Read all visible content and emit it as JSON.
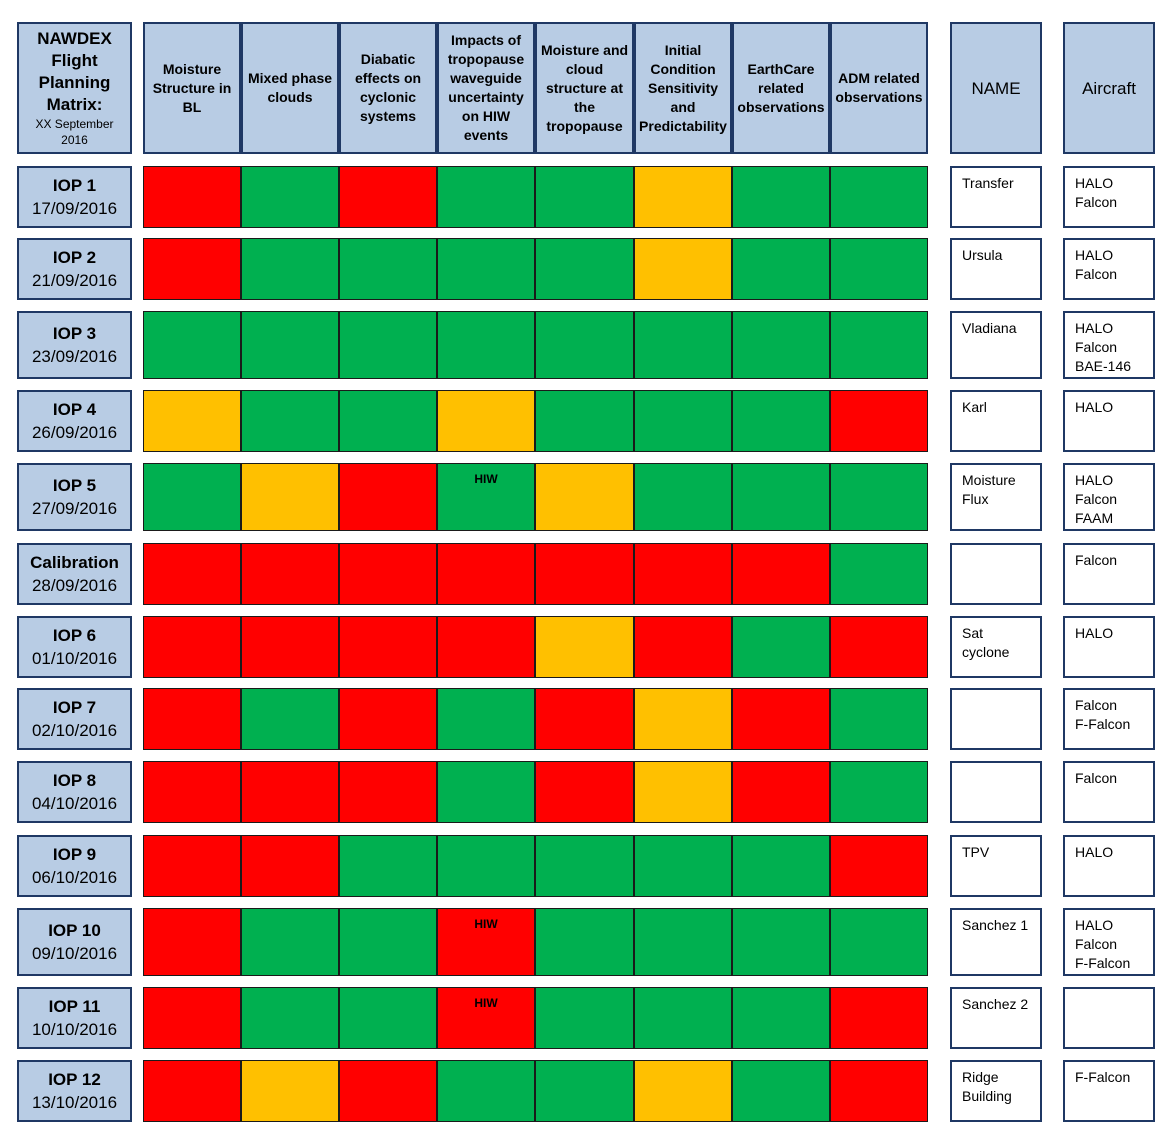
{
  "title": {
    "text": "NAWDEX Flight Planning Matrix:",
    "subtitle": "XX September 2016"
  },
  "colors": {
    "R": "#ff0000",
    "G": "#00b050",
    "Y": "#ffc000",
    "header_fill": "#b8cce4",
    "border": "#1f3864"
  },
  "legend_codes": {
    "R": "red",
    "G": "green",
    "Y": "amber"
  },
  "headers": {
    "objectives": [
      "Moisture Structure in BL",
      "Mixed phase clouds",
      "Diabatic effects on cyclonic systems",
      "Impacts of tropopause waveguide uncertainty on HIW events",
      "Moisture and cloud structure at the tropopause",
      "Initial Condition Sensitivity and Predictability",
      "EarthCare related observations",
      "ADM related observations"
    ],
    "name": "NAME",
    "aircraft": "Aircraft"
  },
  "rows": [
    {
      "id": "IOP 1",
      "date": "17/09/2016",
      "cells": [
        "R",
        "G",
        "R",
        "G",
        "G",
        "Y",
        "G",
        "G"
      ],
      "hiw": "",
      "name": "Transfer",
      "aircraft": "HALO\nFalcon"
    },
    {
      "id": "IOP 2",
      "date": "21/09/2016",
      "cells": [
        "R",
        "G",
        "G",
        "G",
        "G",
        "Y",
        "G",
        "G"
      ],
      "hiw": "",
      "name": "Ursula",
      "aircraft": "HALO\nFalcon"
    },
    {
      "id": "IOP 3",
      "date": "23/09/2016",
      "cells": [
        "G",
        "G",
        "G",
        "G",
        "G",
        "G",
        "G",
        "G"
      ],
      "hiw": "",
      "name": "Vladiana",
      "aircraft": "HALO\nFalcon\nBAE-146"
    },
    {
      "id": "IOP 4",
      "date": "26/09/2016",
      "cells": [
        "Y",
        "G",
        "G",
        "Y",
        "G",
        "G",
        "G",
        "R"
      ],
      "hiw": "",
      "name": "Karl",
      "aircraft": "HALO"
    },
    {
      "id": "IOP 5",
      "date": "27/09/2016",
      "cells": [
        "G",
        "Y",
        "R",
        "G",
        "Y",
        "G",
        "G",
        "G"
      ],
      "hiw": "HIW",
      "name": "Moisture\nFlux",
      "aircraft": "HALO\nFalcon\nFAAM"
    },
    {
      "id": "Calibration",
      "date": "28/09/2016",
      "cells": [
        "R",
        "R",
        "R",
        "R",
        "R",
        "R",
        "R",
        "G"
      ],
      "hiw": "",
      "name": "",
      "aircraft": "Falcon"
    },
    {
      "id": "IOP 6",
      "date": "01/10/2016",
      "cells": [
        "R",
        "R",
        "R",
        "R",
        "Y",
        "R",
        "G",
        "R"
      ],
      "hiw": "",
      "name": "Sat\ncyclone",
      "aircraft": "HALO"
    },
    {
      "id": "IOP 7",
      "date": "02/10/2016",
      "cells": [
        "R",
        "G",
        "R",
        "G",
        "R",
        "Y",
        "R",
        "G"
      ],
      "hiw": "",
      "name": "",
      "aircraft": "Falcon\nF-Falcon"
    },
    {
      "id": "IOP 8",
      "date": "04/10/2016",
      "cells": [
        "R",
        "R",
        "R",
        "G",
        "R",
        "Y",
        "R",
        "G"
      ],
      "hiw": "",
      "name": "",
      "aircraft": "Falcon"
    },
    {
      "id": "IOP 9",
      "date": "06/10/2016",
      "cells": [
        "R",
        "R",
        "G",
        "G",
        "G",
        "G",
        "G",
        "R"
      ],
      "hiw": "",
      "name": "TPV",
      "aircraft": "HALO"
    },
    {
      "id": "IOP 10",
      "date": "09/10/2016",
      "cells": [
        "R",
        "G",
        "G",
        "R",
        "G",
        "G",
        "G",
        "G"
      ],
      "hiw": "HIW",
      "name": "Sanchez 1",
      "aircraft": "HALO\nFalcon\nF-Falcon"
    },
    {
      "id": "IOP 11",
      "date": "10/10/2016",
      "cells": [
        "R",
        "G",
        "G",
        "R",
        "G",
        "G",
        "G",
        "R"
      ],
      "hiw": "HIW",
      "name": "Sanchez 2",
      "aircraft": ""
    },
    {
      "id": "IOP 12",
      "date": "13/10/2016",
      "cells": [
        "R",
        "Y",
        "R",
        "G",
        "G",
        "Y",
        "G",
        "R"
      ],
      "hiw": "",
      "name": "Ridge\nBuilding",
      "aircraft": "F-Falcon"
    }
  ]
}
